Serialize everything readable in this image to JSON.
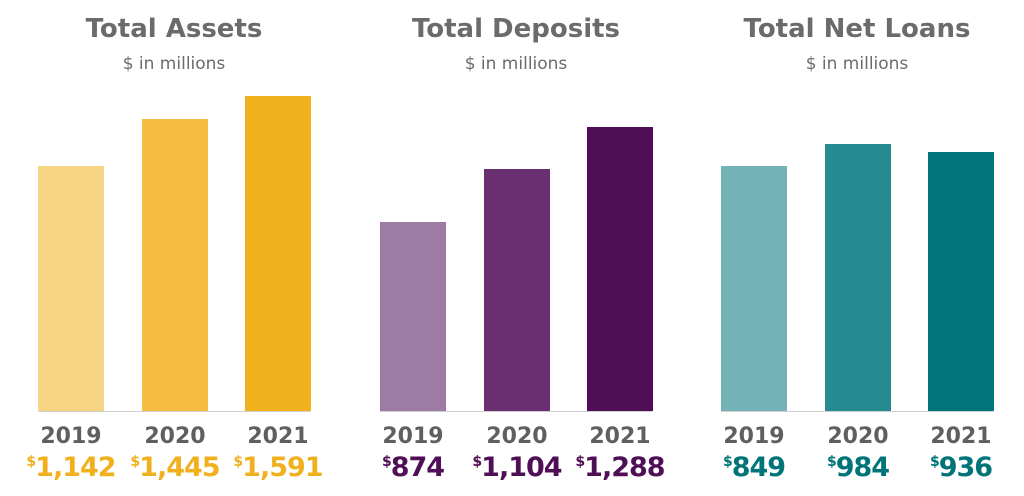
{
  "chart_data": [
    {
      "type": "bar",
      "title": "Total Assets",
      "subtitle": "$ in millions",
      "categories": [
        "2019",
        "2020",
        "2021"
      ],
      "values": [
        1142,
        1445,
        1591
      ],
      "labels": [
        "1,142",
        "1,445",
        "1,591"
      ],
      "currency": "$",
      "ylim": [
        -430,
        1591
      ],
      "colors": [
        "#f8d584",
        "#f5bc40",
        "#f1b11f"
      ],
      "label_color": "#f1b11f"
    },
    {
      "type": "bar",
      "title": "Total Deposits",
      "subtitle": "$ in millions",
      "categories": [
        "2019",
        "2020",
        "2021"
      ],
      "values": [
        874,
        1104,
        1288
      ],
      "labels": [
        "874",
        "1,104",
        "1,288"
      ],
      "currency": "$",
      "ylim": [
        49,
        1424
      ],
      "colors": [
        "#9d7ba4",
        "#6a2f70",
        "#4f0e55"
      ],
      "label_color": "#4f0e55"
    },
    {
      "type": "bar",
      "title": "Total Net Loans",
      "subtitle": "$ in millions",
      "categories": [
        "2019",
        "2020",
        "2021"
      ],
      "values": [
        849,
        984,
        936
      ],
      "labels": [
        "849",
        "984",
        "936"
      ],
      "currency": "$",
      "ylim": [
        -654,
        1278
      ],
      "colors": [
        "#73b3b8",
        "#258b91",
        "#007479"
      ],
      "label_color": "#007479"
    }
  ]
}
